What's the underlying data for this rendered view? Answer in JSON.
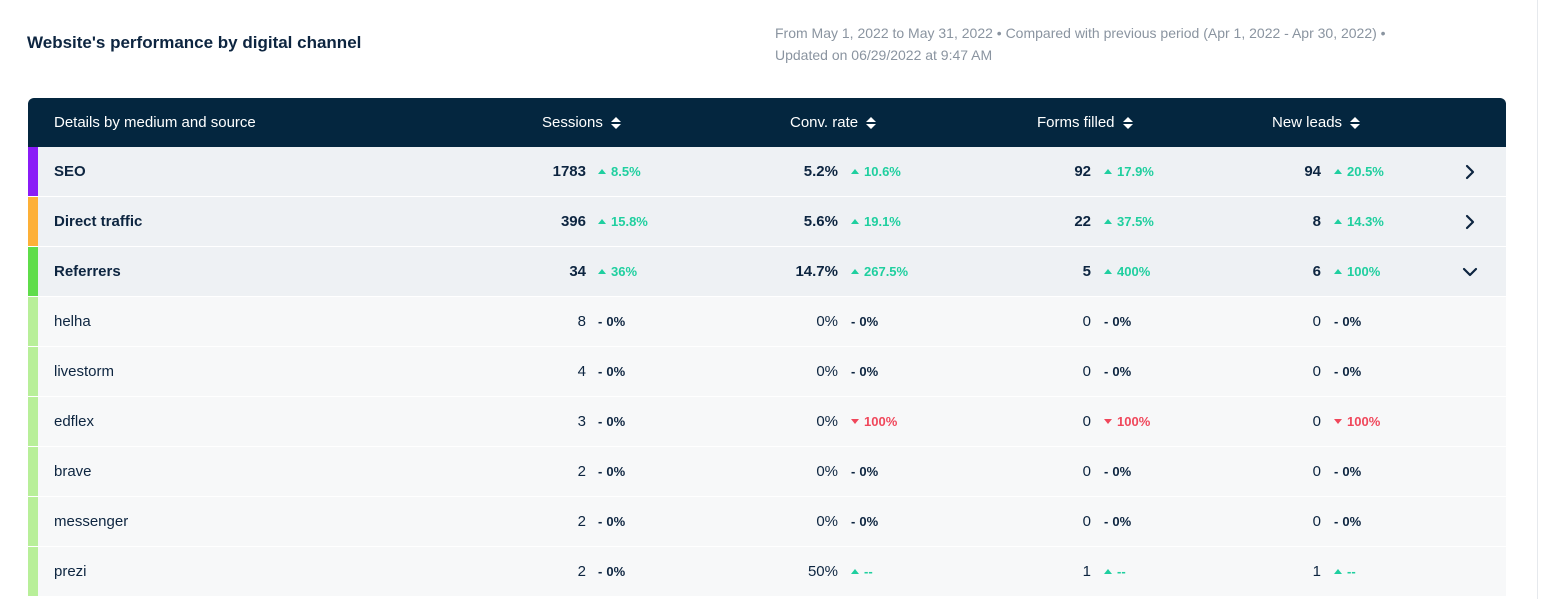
{
  "header": {
    "title": "Website's performance by digital channel",
    "meta_line1": "From May 1, 2022 to May 31, 2022 • Compared with previous period (Apr 1, 2022 - Apr 30, 2022) •",
    "meta_line2": "Updated on 06/29/2022 at 9:47 AM"
  },
  "table": {
    "columns": [
      "Details by medium and source",
      "Sessions",
      "Conv. rate",
      "Forms filled",
      "New leads"
    ],
    "rows": [
      {
        "label": "SEO",
        "level": "top",
        "color": "#8a1cf7",
        "chevron": "right",
        "cells": [
          {
            "v": "1783",
            "c": "8.5%",
            "d": "up"
          },
          {
            "v": "5.2%",
            "c": "10.6%",
            "d": "up"
          },
          {
            "v": "92",
            "c": "17.9%",
            "d": "up"
          },
          {
            "v": "94",
            "c": "20.5%",
            "d": "up"
          }
        ]
      },
      {
        "label": "Direct traffic",
        "level": "top",
        "color": "#fdb038",
        "chevron": "right",
        "cells": [
          {
            "v": "396",
            "c": "15.8%",
            "d": "up"
          },
          {
            "v": "5.6%",
            "c": "19.1%",
            "d": "up"
          },
          {
            "v": "22",
            "c": "37.5%",
            "d": "up"
          },
          {
            "v": "8",
            "c": "14.3%",
            "d": "up"
          }
        ]
      },
      {
        "label": "Referrers",
        "level": "top",
        "color": "#5fdd4a",
        "chevron": "down",
        "cells": [
          {
            "v": "34",
            "c": "36%",
            "d": "up"
          },
          {
            "v": "14.7%",
            "c": "267.5%",
            "d": "up"
          },
          {
            "v": "5",
            "c": "400%",
            "d": "up"
          },
          {
            "v": "6",
            "c": "100%",
            "d": "up"
          }
        ]
      },
      {
        "label": "helha",
        "level": "sub",
        "color": "#b8ef99",
        "chevron": "",
        "cells": [
          {
            "v": "8",
            "c": "0%",
            "d": "flat"
          },
          {
            "v": "0%",
            "c": "0%",
            "d": "flat"
          },
          {
            "v": "0",
            "c": "0%",
            "d": "flat"
          },
          {
            "v": "0",
            "c": "0%",
            "d": "flat"
          }
        ]
      },
      {
        "label": "livestorm",
        "level": "sub",
        "color": "#b8ef99",
        "chevron": "",
        "cells": [
          {
            "v": "4",
            "c": "0%",
            "d": "flat"
          },
          {
            "v": "0%",
            "c": "0%",
            "d": "flat"
          },
          {
            "v": "0",
            "c": "0%",
            "d": "flat"
          },
          {
            "v": "0",
            "c": "0%",
            "d": "flat"
          }
        ]
      },
      {
        "label": "edflex",
        "level": "sub",
        "color": "#b8ef99",
        "chevron": "",
        "cells": [
          {
            "v": "3",
            "c": "0%",
            "d": "flat"
          },
          {
            "v": "0%",
            "c": "100%",
            "d": "down"
          },
          {
            "v": "0",
            "c": "100%",
            "d": "down"
          },
          {
            "v": "0",
            "c": "100%",
            "d": "down"
          }
        ]
      },
      {
        "label": "brave",
        "level": "sub",
        "color": "#b8ef99",
        "chevron": "",
        "cells": [
          {
            "v": "2",
            "c": "0%",
            "d": "flat"
          },
          {
            "v": "0%",
            "c": "0%",
            "d": "flat"
          },
          {
            "v": "0",
            "c": "0%",
            "d": "flat"
          },
          {
            "v": "0",
            "c": "0%",
            "d": "flat"
          }
        ]
      },
      {
        "label": "messenger",
        "level": "sub",
        "color": "#b8ef99",
        "chevron": "",
        "cells": [
          {
            "v": "2",
            "c": "0%",
            "d": "flat"
          },
          {
            "v": "0%",
            "c": "0%",
            "d": "flat"
          },
          {
            "v": "0",
            "c": "0%",
            "d": "flat"
          },
          {
            "v": "0",
            "c": "0%",
            "d": "flat"
          }
        ]
      },
      {
        "label": "prezi",
        "level": "sub",
        "color": "#b8ef99",
        "chevron": "",
        "cells": [
          {
            "v": "2",
            "c": "0%",
            "d": "flat"
          },
          {
            "v": "50%",
            "c": "--",
            "d": "up"
          },
          {
            "v": "1",
            "c": "--",
            "d": "up"
          },
          {
            "v": "1",
            "c": "--",
            "d": "up"
          }
        ]
      }
    ]
  }
}
